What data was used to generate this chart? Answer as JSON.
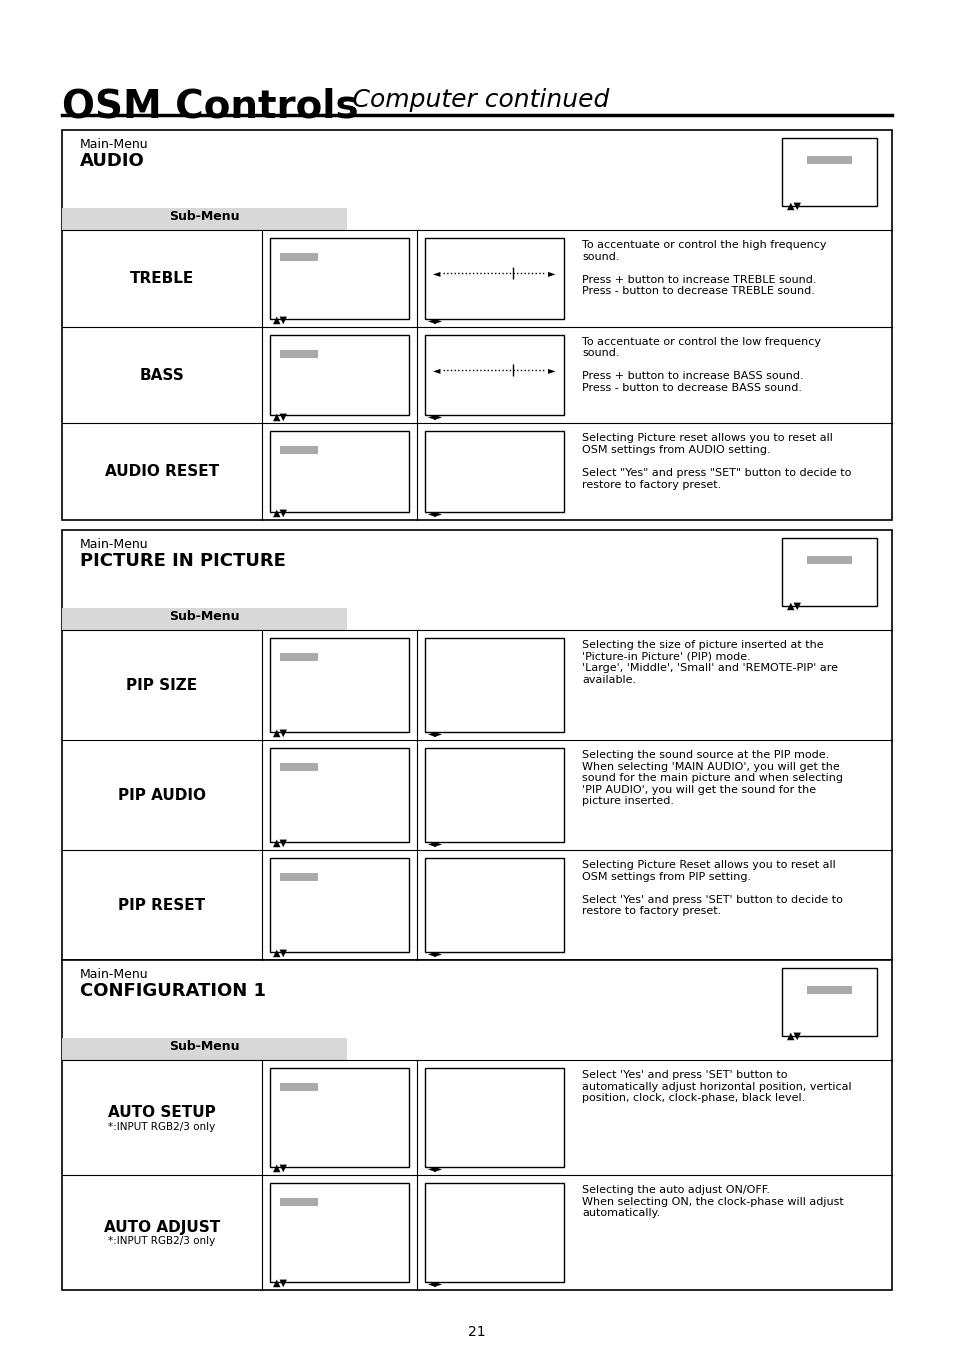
{
  "title_bold": "OSM Controls",
  "title_italic": "–Computer continued",
  "page_number": "21",
  "bg_color": "#ffffff",
  "sections": [
    {
      "main_menu": "Main-Menu",
      "menu_name": "AUDIO",
      "sub_menu_label": "Sub-Menu",
      "rows": [
        {
          "label": "TREBLE",
          "has_slider": true,
          "description": "To accentuate or control the high frequency\nsound.\n\nPress + button to increase TREBLE sound.\nPress - button to decrease TREBLE sound."
        },
        {
          "label": "BASS",
          "has_slider": true,
          "description": "To accentuate or control the low frequency\nsound.\n\nPress + button to increase BASS sound.\nPress - button to decrease BASS sound."
        },
        {
          "label": "AUDIO RESET",
          "has_slider": false,
          "description": "Selecting Picture reset allows you to reset all\nOSM settings from AUDIO setting.\n\nSelect \"Yes\" and press \"SET\" button to decide to\nrestore to factory preset."
        }
      ]
    },
    {
      "main_menu": "Main-Menu",
      "menu_name": "PICTURE IN PICTURE",
      "sub_menu_label": "Sub-Menu",
      "rows": [
        {
          "label": "PIP SIZE",
          "has_slider": false,
          "description": "Selecting the size of picture inserted at the\n'Picture-in Picture' (PIP) mode.\n'Large', 'Middle', 'Small' and 'REMOTE-PIP' are\navailable."
        },
        {
          "label": "PIP AUDIO",
          "has_slider": false,
          "description": "Selecting the sound source at the PIP mode.\nWhen selecting 'MAIN AUDIO', you will get the\nsound for the main picture and when selecting\n'PIP AUDIO', you will get the sound for the\npicture inserted."
        },
        {
          "label": "PIP RESET",
          "has_slider": false,
          "description": "Selecting Picture Reset allows you to reset all\nOSM settings from PIP setting.\n\nSelect 'Yes' and press 'SET' button to decide to\nrestore to factory preset."
        }
      ]
    },
    {
      "main_menu": "Main-Menu",
      "menu_name": "CONFIGURATION 1",
      "sub_menu_label": "Sub-Menu",
      "rows": [
        {
          "label": "AUTO SETUP",
          "sublabel": "*:INPUT RGB2/3 only",
          "has_slider": false,
          "description": "Select 'Yes' and press 'SET' button to\nautomatically adjust horizontal position, vertical\nposition, clock, clock-phase, black level."
        },
        {
          "label": "AUTO ADJUST",
          "sublabel": "*:INPUT RGB2/3 only",
          "has_slider": false,
          "description": "Selecting the auto adjust ON/OFF.\nWhen selecting ON, the clock-phase will adjust\nautomatically."
        }
      ]
    }
  ]
}
